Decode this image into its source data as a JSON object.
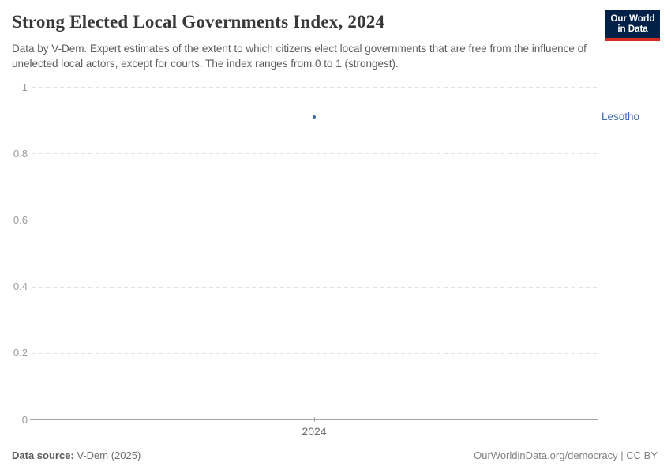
{
  "header": {
    "title": "Strong Elected Local Governments Index, 2024",
    "subtitle": "Data by V-Dem. Expert estimates of the extent to which citizens elect local governments that are free from the influence of unelected local actors, except for courts. The index ranges from 0 to 1 (strongest).",
    "logo": {
      "line1": "Our World",
      "line2": "in Data"
    }
  },
  "chart_data": {
    "type": "scatter",
    "title": "Strong Elected Local Governments Index, 2024",
    "x": [
      2024
    ],
    "x_tick_labels": [
      "2024"
    ],
    "series": [
      {
        "name": "Lesotho",
        "values": [
          0.91
        ],
        "color": "#3d6bb3"
      }
    ],
    "y_ticks": [
      0,
      0.2,
      0.4,
      0.6,
      0.8,
      1
    ],
    "y_tick_labels": [
      "0",
      "0.2",
      "0.4",
      "0.6",
      "0.8",
      "1"
    ],
    "ylim": [
      0,
      1
    ],
    "xlabel": "",
    "ylabel": "",
    "grid": "horizontal-dashed",
    "legend": "entity-label-right-of-plot"
  },
  "footer": {
    "source_label": "Data source:",
    "source_value": " V-Dem (2025)",
    "credit": "OurWorldinData.org/democracy | CC BY"
  },
  "colors": {
    "accent_series": "#3d6bb3",
    "logo_background": "#002147",
    "logo_red_bar": "#d42b21",
    "gridline": "#e2e2e2",
    "axis_line": "#a6a6a6"
  }
}
